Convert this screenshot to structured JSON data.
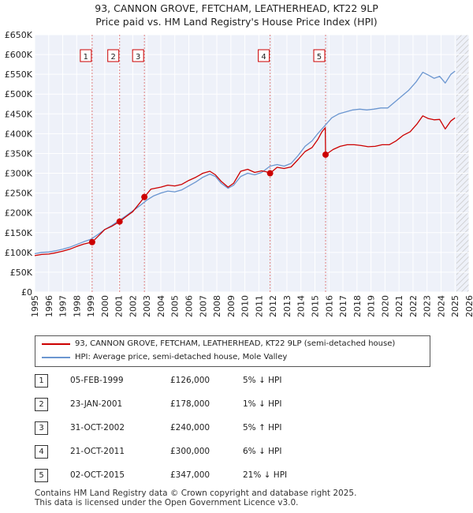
{
  "chart_data": {
    "type": "line",
    "title": "93, CANNON GROVE, FETCHAM, LEATHERHEAD, KT22 9LP",
    "subtitle": "Price paid vs. HM Land Registry's House Price Index (HPI)",
    "xlabel": "",
    "ylabel": "",
    "xlim": [
      1995,
      2026
    ],
    "ylim": [
      0,
      650000
    ],
    "yticks": [
      0,
      50000,
      100000,
      150000,
      200000,
      250000,
      300000,
      350000,
      400000,
      450000,
      500000,
      550000,
      600000,
      650000
    ],
    "ytick_labels": [
      "£0",
      "£50K",
      "£100K",
      "£150K",
      "£200K",
      "£250K",
      "£300K",
      "£350K",
      "£400K",
      "£450K",
      "£500K",
      "£550K",
      "£600K",
      "£650K"
    ],
    "xticks": [
      1995,
      1996,
      1997,
      1998,
      1999,
      2000,
      2001,
      2002,
      2003,
      2004,
      2005,
      2006,
      2007,
      2008,
      2009,
      2010,
      2011,
      2012,
      2013,
      2014,
      2015,
      2016,
      2017,
      2018,
      2019,
      2020,
      2021,
      2022,
      2023,
      2024,
      2025,
      2026
    ],
    "xtick_labels": [
      "1995",
      "1996",
      "1997",
      "1998",
      "1999",
      "2000",
      "2001",
      "2002",
      "2003",
      "2004",
      "2005",
      "2006",
      "2007",
      "2008",
      "2009",
      "2010",
      "2011",
      "2012",
      "2013",
      "2014",
      "2015",
      "2016",
      "2017",
      "2018",
      "2019",
      "2020",
      "2021",
      "2022",
      "2023",
      "2024",
      "2025",
      "2026"
    ],
    "grid": true,
    "legend_position": "below",
    "series": [
      {
        "name": "93, CANNON GROVE, FETCHAM, LEATHERHEAD, KT22 9LP (semi-detached house)",
        "color": "#cc0000",
        "x": [
          1995.0,
          1995.5,
          1996.0,
          1996.5,
          1997.0,
          1997.5,
          1998.0,
          1998.5,
          1999.1,
          1999.5,
          2000.0,
          2000.5,
          2001.06,
          2001.5,
          2002.0,
          2002.5,
          2002.83,
          2003.3,
          2004.0,
          2004.5,
          2005.0,
          2005.5,
          2006.0,
          2006.5,
          2007.0,
          2007.5,
          2007.9,
          2008.3,
          2008.8,
          2009.2,
          2009.7,
          2010.2,
          2010.7,
          2011.2,
          2011.5,
          2011.8,
          2012.3,
          2012.8,
          2013.3,
          2013.8,
          2014.3,
          2014.8,
          2015.2,
          2015.5,
          2015.74,
          2015.76,
          2016.3,
          2016.8,
          2017.3,
          2017.8,
          2018.3,
          2018.8,
          2019.3,
          2019.8,
          2020.3,
          2020.8,
          2021.3,
          2021.8,
          2022.3,
          2022.7,
          2023.1,
          2023.5,
          2023.9,
          2024.3,
          2024.7,
          2025.0
        ],
        "values": [
          92000,
          95000,
          96000,
          99000,
          103000,
          108000,
          115000,
          121000,
          126000,
          140000,
          158000,
          166000,
          178000,
          190000,
          203000,
          225000,
          240000,
          260000,
          265000,
          270000,
          268000,
          272000,
          282000,
          290000,
          300000,
          305000,
          296000,
          280000,
          265000,
          275000,
          305000,
          310000,
          302000,
          306000,
          304000,
          300000,
          315000,
          312000,
          316000,
          335000,
          355000,
          365000,
          385000,
          405000,
          415000,
          347000,
          360000,
          368000,
          372000,
          372000,
          370000,
          367000,
          368000,
          372000,
          372000,
          382000,
          396000,
          405000,
          425000,
          445000,
          438000,
          435000,
          436000,
          412000,
          432000,
          440000
        ]
      },
      {
        "name": "HPI: Average price, semi-detached house, Mole Valley",
        "color": "#6b96d0",
        "x": [
          1995.0,
          1995.5,
          1996.0,
          1996.5,
          1997.0,
          1997.5,
          1998.0,
          1998.5,
          1999.0,
          1999.5,
          2000.0,
          2000.5,
          2001.0,
          2001.5,
          2002.0,
          2002.5,
          2003.0,
          2003.5,
          2004.0,
          2004.5,
          2005.0,
          2005.5,
          2006.0,
          2006.5,
          2007.0,
          2007.5,
          2007.9,
          2008.3,
          2008.8,
          2009.2,
          2009.7,
          2010.2,
          2010.7,
          2011.2,
          2011.8,
          2012.3,
          2012.8,
          2013.3,
          2013.8,
          2014.3,
          2014.8,
          2015.2,
          2015.7,
          2016.2,
          2016.7,
          2017.2,
          2017.7,
          2018.2,
          2018.7,
          2019.2,
          2019.7,
          2020.2,
          2020.7,
          2021.2,
          2021.7,
          2022.2,
          2022.7,
          2023.1,
          2023.5,
          2023.9,
          2024.3,
          2024.7,
          2025.0
        ],
        "values": [
          97000,
          100000,
          101000,
          104000,
          108000,
          113000,
          120000,
          127000,
          133000,
          145000,
          158000,
          168000,
          180000,
          192000,
          205000,
          218000,
          232000,
          243000,
          250000,
          255000,
          253000,
          258000,
          268000,
          278000,
          290000,
          298000,
          292000,
          275000,
          262000,
          270000,
          292000,
          300000,
          296000,
          302000,
          318000,
          322000,
          318000,
          325000,
          345000,
          368000,
          382000,
          400000,
          420000,
          440000,
          450000,
          455000,
          460000,
          462000,
          460000,
          462000,
          465000,
          465000,
          480000,
          495000,
          510000,
          530000,
          555000,
          548000,
          540000,
          545000,
          528000,
          550000,
          558000
        ]
      }
    ],
    "transactions": [
      {
        "n": "1",
        "year": 1999.1,
        "value": 126000
      },
      {
        "n": "2",
        "year": 2001.06,
        "value": 178000
      },
      {
        "n": "3",
        "year": 2002.83,
        "value": 240000
      },
      {
        "n": "4",
        "year": 2011.8,
        "value": 300000
      },
      {
        "n": "5",
        "year": 2015.76,
        "value": 347000
      }
    ]
  },
  "header": {
    "title": "93, CANNON GROVE, FETCHAM, LEATHERHEAD, KT22 9LP",
    "subtitle": "Price paid vs. HM Land Registry's House Price Index (HPI)"
  },
  "legend": {
    "items": [
      {
        "label": "93, CANNON GROVE, FETCHAM, LEATHERHEAD, KT22 9LP (semi-detached house)",
        "color": "#cc0000"
      },
      {
        "label": "HPI: Average price, semi-detached house, Mole Valley",
        "color": "#6b96d0"
      }
    ]
  },
  "table": {
    "rows": [
      {
        "num": "1",
        "date": "05-FEB-1999",
        "price": "£126,000",
        "hpi": "5% ↓ HPI"
      },
      {
        "num": "2",
        "date": "23-JAN-2001",
        "price": "£178,000",
        "hpi": "1% ↓ HPI"
      },
      {
        "num": "3",
        "date": "31-OCT-2002",
        "price": "£240,000",
        "hpi": "5% ↑ HPI"
      },
      {
        "num": "4",
        "date": "21-OCT-2011",
        "price": "£300,000",
        "hpi": "6% ↓ HPI"
      },
      {
        "num": "5",
        "date": "02-OCT-2015",
        "price": "£347,000",
        "hpi": "21% ↓ HPI"
      }
    ]
  },
  "footer": {
    "line1": "Contains HM Land Registry data © Crown copyright and database right 2025.",
    "line2": "This data is licensed under the Open Government Licence v3.0."
  }
}
